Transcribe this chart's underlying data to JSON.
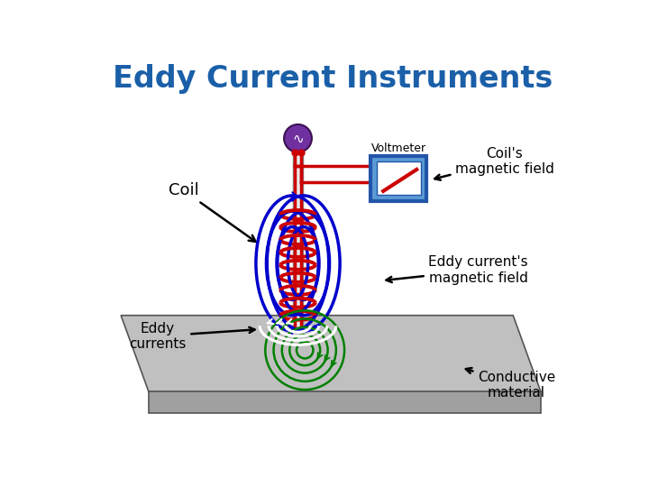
{
  "title": "Eddy Current Instruments",
  "title_color": "#1a5fa8",
  "title_fontsize": 24,
  "bg_color": "#ffffff",
  "labels": {
    "voltmeter": "Voltmeter",
    "coil": "Coil",
    "coils_field": "Coil's\nmagnetic field",
    "eddy_field": "Eddy current's\nmagnetic field",
    "eddy_currents": "Eddy\ncurrents",
    "conductive": "Conductive\nmaterial"
  },
  "colors": {
    "blue": "#0000cc",
    "red": "#cc0000",
    "green": "#008000",
    "white": "#ffffff",
    "gray_top": "#c0c0c0",
    "gray_front": "#a0a0a0",
    "gray_side": "#909090",
    "voltmeter_bg": "#5b9bd5",
    "voltmeter_border": "#336699",
    "voltmeter_circle": "#7030a0",
    "coil_wire": "#cc0000",
    "text_black": "#000000"
  }
}
